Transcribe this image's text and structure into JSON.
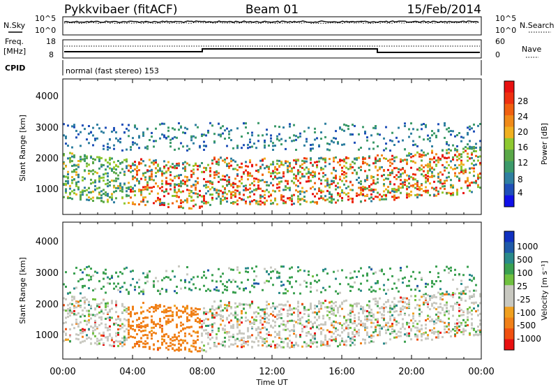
{
  "header": {
    "radar": "Pykkvibaer (fitACF)",
    "beam": "Beam 01",
    "date": "15/Feb/2014"
  },
  "noise_panel": {
    "left_label": "N.Sky",
    "right_label": "N.Search",
    "left_ticks": [
      "10^5",
      "10^0"
    ],
    "right_ticks": [
      "10^5",
      "10^0"
    ]
  },
  "freq_panel": {
    "left_label_1": "Freq.",
    "left_label_2": "[MHz]",
    "right_label": "Nave",
    "left_ticks": [
      "18",
      "8"
    ],
    "right_ticks": [
      "60",
      "0"
    ]
  },
  "cpid": {
    "label": "CPID",
    "text": "normal (fast stereo) 153"
  },
  "chart_data": [
    {
      "type": "heatmap",
      "title": "",
      "xlabel": "Time UT",
      "ylabel": "Slant Range [km]",
      "x_ticks": [
        "00:00",
        "04:00",
        "08:00",
        "12:00",
        "16:00",
        "20:00",
        "00:00"
      ],
      "y_ticks": [
        "1000",
        "2000",
        "3000",
        "4000"
      ],
      "ylim": [
        200,
        4600
      ],
      "colorbar": {
        "label": "Power [dB]",
        "ticks": [
          "4",
          "8",
          "12",
          "16",
          "20",
          "24",
          "28"
        ],
        "colors": [
          "#1010e8",
          "#1f4fb8",
          "#2f7fa0",
          "#3c9a6a",
          "#5aa848",
          "#8ec830",
          "#f0b020",
          "#f08a18",
          "#f06010",
          "#ee3010",
          "#e81010"
        ]
      }
    },
    {
      "type": "heatmap",
      "title": "",
      "xlabel": "Time UT",
      "ylabel": "Slant Range [km]",
      "x_ticks": [
        "00:00",
        "04:00",
        "08:00",
        "12:00",
        "16:00",
        "20:00",
        "00:00"
      ],
      "y_ticks": [
        "1000",
        "2000",
        "3000",
        "4000"
      ],
      "ylim": [
        200,
        4600
      ],
      "colorbar": {
        "label": "Velocity [m s⁻¹]",
        "ticks": [
          "1000",
          "500",
          "100",
          "25",
          "-25",
          "-100",
          "-500",
          "-1000"
        ],
        "colors": [
          "#1030c0",
          "#1f5aa8",
          "#2a8a8a",
          "#3aa050",
          "#70c040",
          "#c8c8c0",
          "#c8c8c0",
          "#f0a020",
          "#f08018",
          "#f05010",
          "#e81010"
        ]
      }
    }
  ]
}
